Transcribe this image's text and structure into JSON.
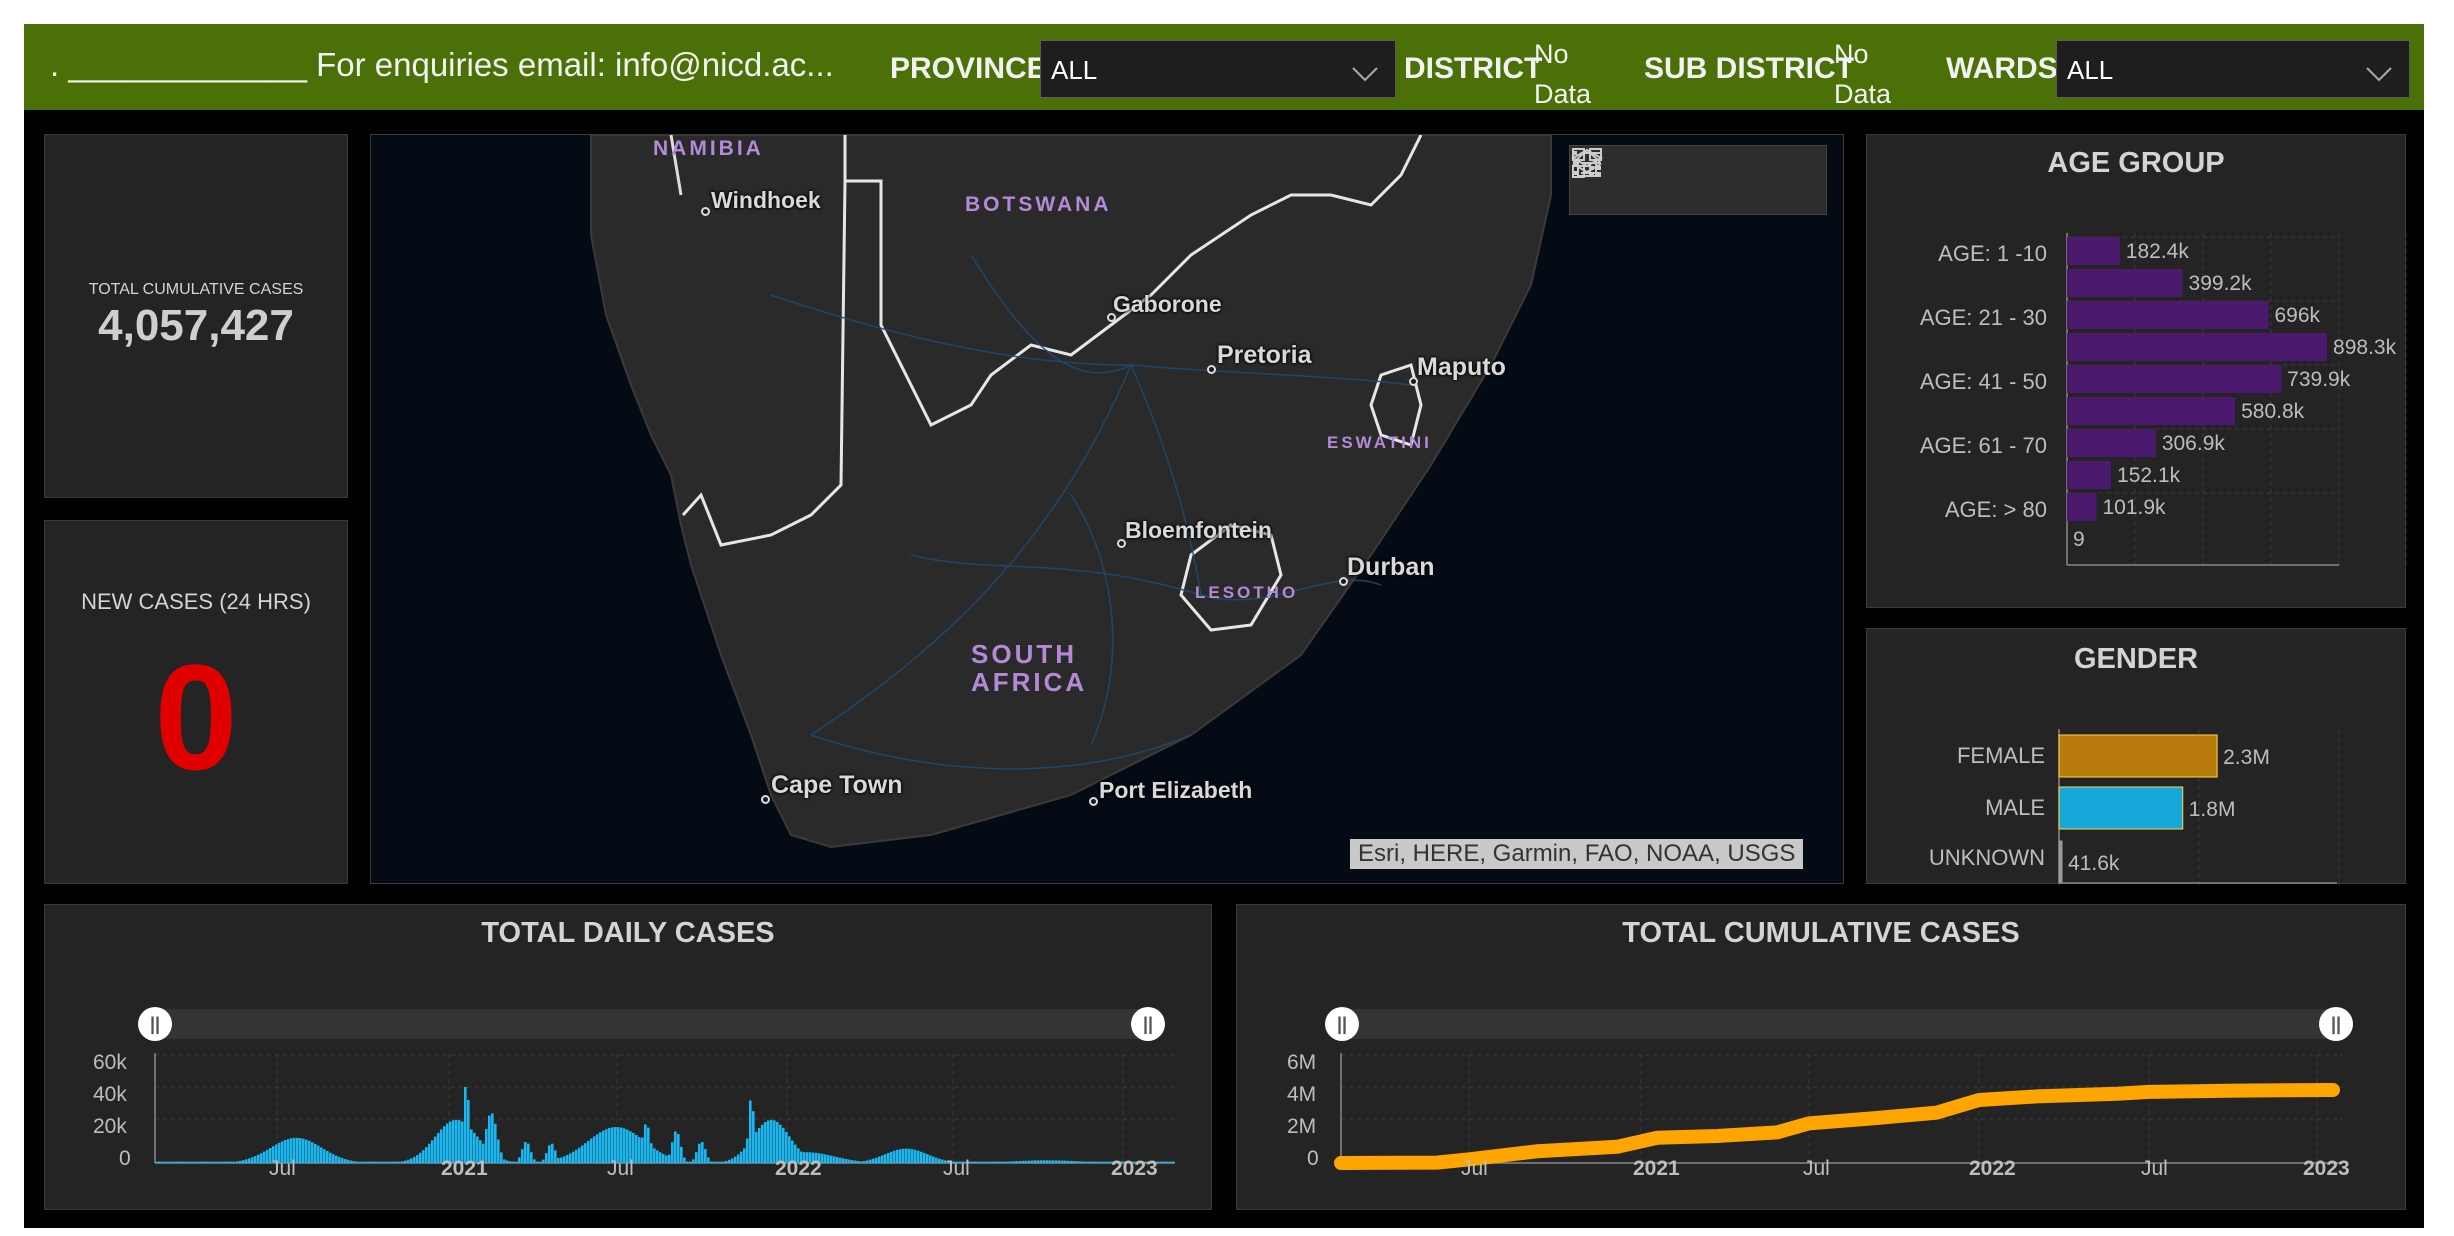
{
  "header": {
    "contact_text": ". _____________ For enquiries email: info@nicd.ac...",
    "province_label": "PROVINCE",
    "province_value": "ALL",
    "district_label": "DISTRICT",
    "district_value_line1": "No",
    "district_value_line2": "Data",
    "subdistrict_label": "SUB DISTRICT",
    "subdistrict_value_line1": "No",
    "subdistrict_value_line2": "Data",
    "wards_label": "WARDS",
    "wards_value": "ALL"
  },
  "total_cumulative": {
    "label": "TOTAL CUMULATIVE CASES",
    "value": "4,057,427"
  },
  "new_cases": {
    "label": "NEW CASES (24 HRS)",
    "value": "0",
    "color": "#e00000"
  },
  "map": {
    "attribution": "Esri, HERE, Garmin, FAO, NOAA, USGS",
    "tools": [
      "home-icon",
      "legend-icon",
      "layers-icon",
      "qr-icon"
    ],
    "countries": [
      "NAMIBIA",
      "BOTSWANA",
      "ESWATINI",
      "LESOTHO",
      "SOUTH",
      "AFRICA"
    ],
    "cities": [
      "Windhoek",
      "Gaborone",
      "Pretoria",
      "Maputo",
      "Bloemfontein",
      "Durban",
      "Cape Town",
      "Port Elizabeth"
    ]
  },
  "age_group": {
    "title": "AGE GROUP",
    "y_labels": [
      "AGE: 1 -10",
      "AGE: 21 - 30",
      "AGE: 41 - 50",
      "AGE: 61 - 70",
      "AGE: > 80"
    ],
    "bar_labels": [
      "182.4k",
      "399.2k",
      "696k",
      "898.3k",
      "739.9k",
      "580.8k",
      "306.9k",
      "152.1k",
      "101.9k",
      "9"
    ],
    "color": "#4b1a6e"
  },
  "gender": {
    "title": "GENDER",
    "y_labels": [
      "FEMALE",
      "MALE",
      "UNKNOWN"
    ],
    "bar_labels": [
      "2.3M",
      "1.8M",
      "41.6k"
    ],
    "colors": [
      "#b97b0c",
      "#17a7d8",
      "#999999"
    ]
  },
  "daily_cases": {
    "title": "TOTAL DAILY CASES",
    "y_ticks": [
      "60k",
      "40k",
      "20k",
      "0"
    ],
    "x_ticks": [
      "Jul",
      "2021",
      "Jul",
      "2022",
      "Jul",
      "2023"
    ],
    "color": "#1ab7f0"
  },
  "cumulative_cases": {
    "title": "TOTAL CUMULATIVE CASES",
    "y_ticks": [
      "6M",
      "4M",
      "2M",
      "0"
    ],
    "x_ticks": [
      "Jul",
      "2021",
      "Jul",
      "2022",
      "Jul",
      "2023"
    ],
    "color": "#ffa500"
  },
  "chart_data": [
    {
      "type": "bar",
      "title": "AGE GROUP",
      "categories": [
        "AGE: 1 -10",
        "",
        "AGE: 21 - 30",
        "",
        "AGE: 41 - 50",
        "",
        "AGE: 61 - 70",
        "",
        "AGE: > 80",
        ""
      ],
      "values": [
        182400,
        399200,
        696000,
        898300,
        739900,
        580800,
        306900,
        152100,
        101900,
        9
      ],
      "orientation": "horizontal",
      "grid": true
    },
    {
      "type": "bar",
      "title": "GENDER",
      "categories": [
        "FEMALE",
        "MALE",
        "UNKNOWN"
      ],
      "values": [
        2300000,
        1800000,
        41600
      ],
      "orientation": "horizontal",
      "grid": true
    },
    {
      "type": "bar",
      "title": "TOTAL DAILY CASES",
      "x": [
        "2020-07",
        "2020-12",
        "2021-01",
        "2021-07",
        "2021-12",
        "2022-01",
        "2022-05",
        "2022-07"
      ],
      "values": [
        14000,
        2000,
        45000,
        24000,
        37000,
        8000,
        9000,
        1000
      ],
      "ylim": [
        0,
        60000
      ],
      "grid": true
    },
    {
      "type": "line",
      "title": "TOTAL CUMULATIVE CASES",
      "x": [
        "2020-03",
        "2020-07",
        "2021-01",
        "2021-07",
        "2022-01",
        "2022-07",
        "2023-01"
      ],
      "values": [
        0,
        200000,
        1200000,
        2200000,
        3500000,
        4000000,
        4057427
      ],
      "ylim": [
        0,
        6000000
      ],
      "grid": true
    }
  ]
}
